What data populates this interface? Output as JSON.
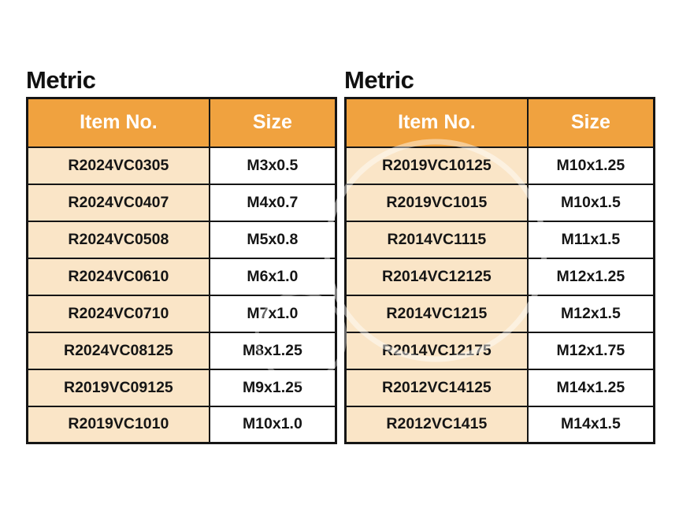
{
  "colors": {
    "header_bg": "#F0A23F",
    "item_cell_bg": "#FAE5C7",
    "size_cell_bg": "#FFFFFF",
    "border": "#151515",
    "header_text": "#FFFFFF",
    "cell_text": "#151515",
    "title_text": "#111111"
  },
  "tables": [
    {
      "title": "Metric",
      "columns": [
        "Item No.",
        "Size"
      ],
      "rows": [
        {
          "item": "R2024VC0305",
          "size": "M3x0.5"
        },
        {
          "item": "R2024VC0407",
          "size": "M4x0.7"
        },
        {
          "item": "R2024VC0508",
          "size": "M5x0.8"
        },
        {
          "item": "R2024VC0610",
          "size": "M6x1.0"
        },
        {
          "item": "R2024VC0710",
          "size": "M7x1.0"
        },
        {
          "item": "R2024VC08125",
          "size": "M8x1.25"
        },
        {
          "item": "R2019VC09125",
          "size": "M9x1.25"
        },
        {
          "item": "R2019VC1010",
          "size": "M10x1.0"
        }
      ]
    },
    {
      "title": "Metric",
      "columns": [
        "Item No.",
        "Size"
      ],
      "rows": [
        {
          "item": "R2019VC10125",
          "size": "M10x1.25"
        },
        {
          "item": "R2019VC1015",
          "size": "M10x1.5"
        },
        {
          "item": "R2014VC1115",
          "size": "M11x1.5"
        },
        {
          "item": "R2014VC12125",
          "size": "M12x1.25"
        },
        {
          "item": "R2014VC1215",
          "size": "M12x1.5"
        },
        {
          "item": "R2014VC12175",
          "size": "M12x1.75"
        },
        {
          "item": "R2012VC14125",
          "size": "M14x1.25"
        },
        {
          "item": "R2012VC1415",
          "size": "M14x1.5"
        }
      ]
    }
  ]
}
